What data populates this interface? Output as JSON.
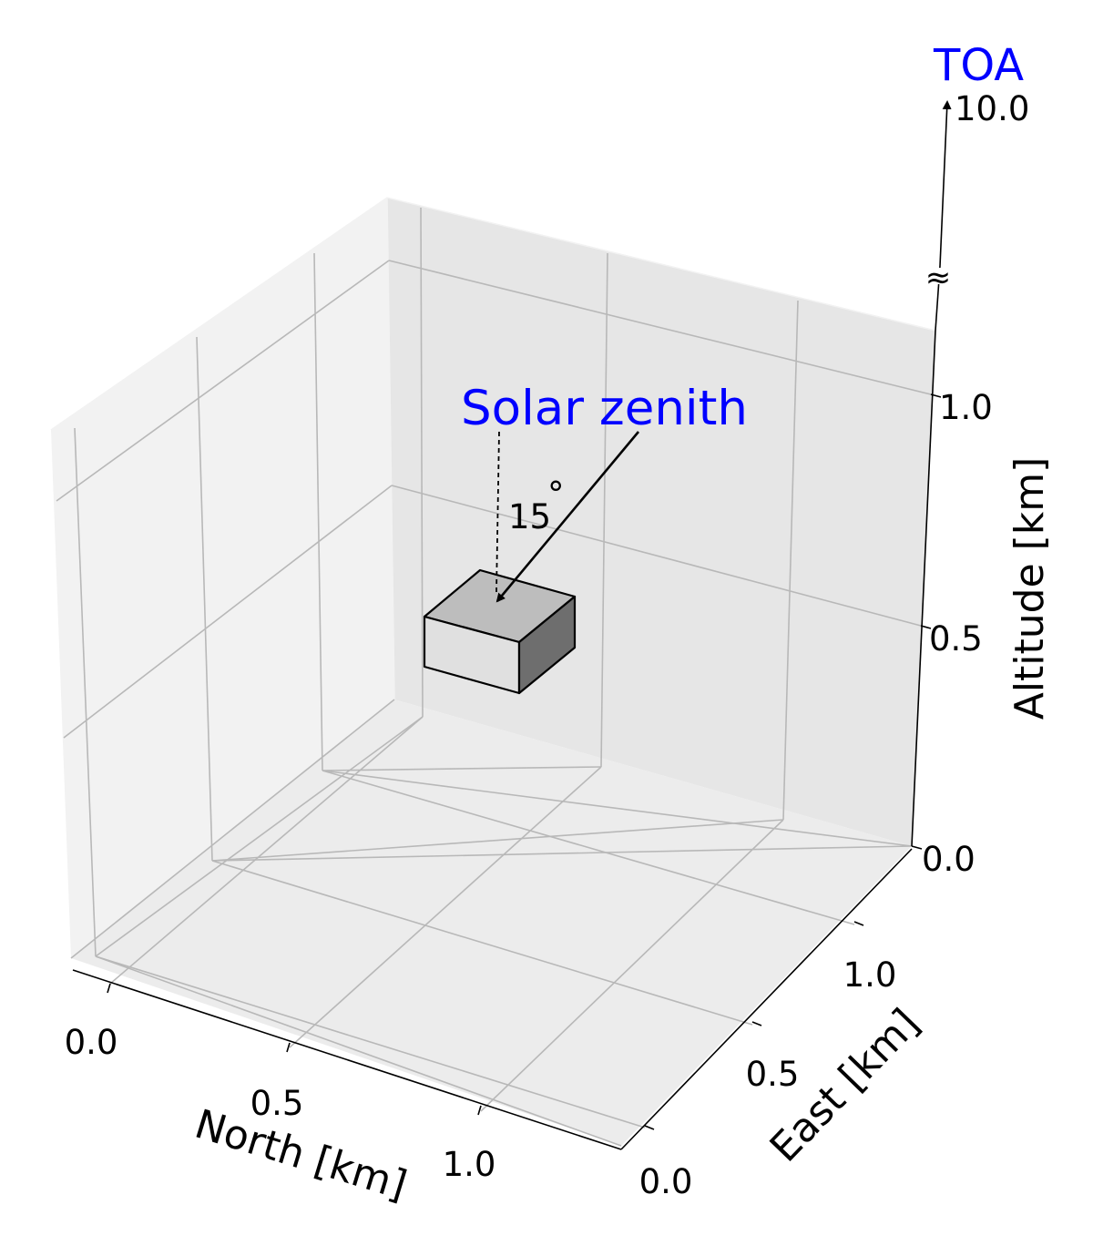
{
  "figure": {
    "toa_label": "TOA",
    "solar_label": "Solar zenith",
    "angle_label": "15",
    "angle_degree": "°",
    "break_symbol": "≈",
    "accent_color": "#0000ff"
  },
  "axes": {
    "north": {
      "label": "North [km]",
      "ticks": [
        "0.0",
        "0.5",
        "1.0"
      ]
    },
    "east": {
      "label": "East [km]",
      "ticks": [
        "0.0",
        "0.5",
        "1.0"
      ]
    },
    "altitude": {
      "label": "Altitude [km]",
      "ticks": [
        "0.0",
        "0.5",
        "1.0"
      ],
      "top_tick": "10.0"
    }
  },
  "cloud_box": {
    "colors": {
      "top": "#bdbdbd",
      "front": "#e0e0e0",
      "side": "#6e6e6e"
    }
  }
}
